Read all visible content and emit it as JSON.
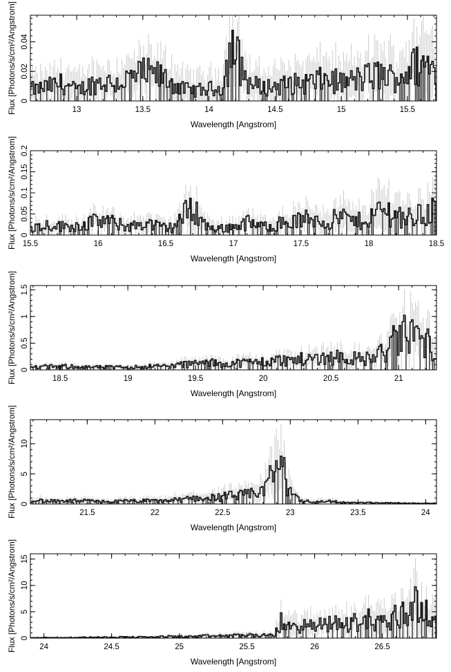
{
  "chart_data": [
    {
      "type": "line",
      "xlabel": "Wavelength [Angstrom]",
      "ylabel": "Flux [Photons/s/cm²/Angstrom]",
      "xlim": [
        12.65,
        15.72
      ],
      "ylim": [
        0,
        0.058
      ],
      "xticks": [
        13,
        13.5,
        14,
        14.5,
        15,
        15.5
      ],
      "xtick_labels": [
        "13",
        "13.5",
        "14",
        "14.5",
        "15",
        "15.5"
      ],
      "yticks": [
        0,
        0.02,
        0.04
      ],
      "ytick_labels": [
        "0",
        "0.02",
        "0.04"
      ],
      "series": [
        {
          "x": [
            12.7,
            12.8,
            12.9,
            13.0,
            13.1,
            13.2,
            13.3,
            13.4,
            13.5,
            13.6,
            13.7,
            13.8,
            13.9,
            14.0,
            14.1,
            14.17,
            14.3,
            14.4,
            14.5,
            14.6,
            14.7,
            14.8,
            14.9,
            15.0,
            15.1,
            15.2,
            15.3,
            15.4,
            15.5,
            15.6,
            15.7
          ],
          "y": [
            0.008,
            0.01,
            0.012,
            0.007,
            0.011,
            0.013,
            0.012,
            0.015,
            0.018,
            0.017,
            0.014,
            0.008,
            0.007,
            0.008,
            0.009,
            0.037,
            0.012,
            0.009,
            0.01,
            0.011,
            0.012,
            0.013,
            0.015,
            0.012,
            0.014,
            0.016,
            0.018,
            0.015,
            0.02,
            0.025,
            0.022
          ],
          "yerr": [
            0.01,
            0.01,
            0.012,
            0.01,
            0.011,
            0.012,
            0.012,
            0.013,
            0.014,
            0.013,
            0.013,
            0.011,
            0.011,
            0.011,
            0.012,
            0.018,
            0.012,
            0.011,
            0.012,
            0.012,
            0.013,
            0.014,
            0.015,
            0.013,
            0.014,
            0.016,
            0.017,
            0.016,
            0.018,
            0.022,
            0.02
          ]
        }
      ]
    },
    {
      "type": "line",
      "xlabel": "Wavelength [Angstrom]",
      "ylabel": "Flux [Photons/s/cm²/Angstrom]",
      "xlim": [
        15.5,
        18.5
      ],
      "ylim": [
        0,
        0.2
      ],
      "xticks": [
        15.5,
        16,
        16.5,
        17,
        17.5,
        18,
        18.5
      ],
      "xtick_labels": [
        "15.5",
        "16",
        "16.5",
        "17",
        "17.5",
        "18",
        "18.5"
      ],
      "yticks": [
        0,
        0.05,
        0.1,
        0.15,
        0.2
      ],
      "ytick_labels": [
        "0",
        "0.05",
        "0.1",
        "0.15",
        "0.2"
      ],
      "series": [
        {
          "x": [
            15.55,
            15.65,
            15.75,
            15.85,
            15.95,
            16.05,
            16.15,
            16.25,
            16.35,
            16.45,
            16.55,
            16.7,
            16.8,
            16.9,
            17.0,
            17.1,
            17.2,
            17.3,
            17.4,
            17.5,
            17.6,
            17.7,
            17.8,
            17.9,
            18.0,
            18.1,
            18.2,
            18.3,
            18.4,
            18.48
          ],
          "y": [
            0.02,
            0.025,
            0.02,
            0.022,
            0.03,
            0.035,
            0.025,
            0.02,
            0.03,
            0.02,
            0.018,
            0.07,
            0.02,
            0.015,
            0.02,
            0.03,
            0.02,
            0.025,
            0.03,
            0.035,
            0.04,
            0.03,
            0.045,
            0.03,
            0.04,
            0.06,
            0.05,
            0.04,
            0.05,
            0.06
          ],
          "yerr": [
            0.015,
            0.015,
            0.015,
            0.016,
            0.018,
            0.02,
            0.018,
            0.016,
            0.02,
            0.017,
            0.017,
            0.035,
            0.018,
            0.016,
            0.018,
            0.022,
            0.018,
            0.02,
            0.024,
            0.027,
            0.03,
            0.027,
            0.035,
            0.028,
            0.035,
            0.05,
            0.045,
            0.04,
            0.05,
            0.06
          ]
        }
      ]
    },
    {
      "type": "line",
      "xlabel": "Wavelength [Angstrom]",
      "ylabel": "Flux [Photons/s/cm²/Angstrom]",
      "xlim": [
        18.28,
        21.28
      ],
      "ylim": [
        0,
        1.58
      ],
      "xticks": [
        18.5,
        19,
        19.5,
        20,
        20.5,
        21
      ],
      "xtick_labels": [
        "18.5",
        "19",
        "19.5",
        "20",
        "20.5",
        "21"
      ],
      "yticks": [
        0,
        0.5,
        1,
        1.5
      ],
      "ytick_labels": [
        "0",
        "0.5",
        "1",
        "1.5"
      ],
      "series": [
        {
          "x": [
            18.3,
            18.4,
            18.5,
            18.6,
            18.7,
            18.8,
            18.9,
            19.0,
            19.1,
            19.2,
            19.3,
            19.4,
            19.5,
            19.6,
            19.7,
            19.8,
            19.9,
            20.0,
            20.1,
            20.2,
            20.3,
            20.4,
            20.5,
            20.6,
            20.7,
            20.8,
            20.9,
            21.0,
            21.1,
            21.2,
            21.27
          ],
          "y": [
            0.05,
            0.06,
            0.06,
            0.07,
            0.05,
            0.05,
            0.05,
            0.05,
            0.06,
            0.07,
            0.07,
            0.1,
            0.12,
            0.13,
            0.12,
            0.13,
            0.14,
            0.15,
            0.18,
            0.18,
            0.2,
            0.22,
            0.25,
            0.25,
            0.2,
            0.22,
            0.35,
            0.6,
            0.7,
            0.5,
            0.4
          ],
          "yerr": [
            0.04,
            0.04,
            0.04,
            0.05,
            0.04,
            0.04,
            0.04,
            0.04,
            0.05,
            0.05,
            0.05,
            0.07,
            0.08,
            0.08,
            0.08,
            0.09,
            0.1,
            0.1,
            0.12,
            0.12,
            0.13,
            0.14,
            0.15,
            0.16,
            0.14,
            0.16,
            0.25,
            0.4,
            0.45,
            0.35,
            0.3
          ]
        }
      ]
    },
    {
      "type": "line",
      "xlabel": "Wavelength [Angstrom]",
      "ylabel": "Flux [Photons/s/cm²/Angstrom]",
      "xlim": [
        21.08,
        24.08
      ],
      "ylim": [
        0,
        14
      ],
      "xticks": [
        21.5,
        22,
        22.5,
        23,
        23.5,
        24
      ],
      "xtick_labels": [
        "21.5",
        "22",
        "22.5",
        "23",
        "23.5",
        "24"
      ],
      "yticks": [
        0,
        5,
        10
      ],
      "ytick_labels": [
        "0",
        "5",
        "10"
      ],
      "series": [
        {
          "x": [
            21.1,
            21.2,
            21.3,
            21.4,
            21.5,
            21.6,
            21.7,
            21.8,
            21.9,
            22.0,
            22.1,
            22.2,
            22.3,
            22.4,
            22.5,
            22.6,
            22.7,
            22.75,
            22.8,
            22.85,
            22.9,
            22.95,
            23.0,
            23.05,
            23.1,
            23.2,
            23.3,
            23.4,
            23.5,
            23.6,
            23.7,
            23.8,
            23.9,
            24.0,
            24.07
          ],
          "y": [
            0.6,
            0.5,
            0.4,
            0.5,
            0.5,
            0.4,
            0.4,
            0.5,
            0.5,
            0.5,
            0.6,
            0.7,
            1.0,
            1.0,
            1.2,
            1.4,
            1.5,
            2.0,
            2.5,
            4.0,
            7.0,
            5.0,
            2.5,
            1.0,
            0.5,
            0.3,
            0.5,
            0.2,
            0.2,
            0.2,
            0.15,
            0.15,
            0.1,
            0.1,
            0.1
          ],
          "yerr": [
            0.5,
            0.5,
            0.4,
            0.5,
            0.5,
            0.4,
            0.4,
            0.5,
            0.5,
            0.5,
            0.6,
            0.7,
            0.9,
            0.9,
            1.0,
            1.1,
            1.2,
            1.5,
            2.0,
            3.0,
            5.0,
            4.0,
            2.0,
            1.0,
            0.5,
            0.4,
            0.5,
            0.3,
            0.3,
            0.3,
            0.2,
            0.2,
            0.2,
            0.2,
            0.2
          ]
        }
      ]
    },
    {
      "type": "line",
      "xlabel": "Wavelength [Angstrom]",
      "ylabel": "Flux [Photons/s/cm²/Angstrom]",
      "xlim": [
        23.9,
        26.9
      ],
      "ylim": [
        0,
        16
      ],
      "xticks": [
        24,
        24.5,
        25,
        25.5,
        26,
        26.5
      ],
      "xtick_labels": [
        "24",
        "24.5",
        "25",
        "25.5",
        "26",
        "26.5"
      ],
      "yticks": [
        0,
        5,
        10,
        15
      ],
      "ytick_labels": [
        "0",
        "5",
        "10",
        "15"
      ],
      "series": [
        {
          "x": [
            23.95,
            24.1,
            24.2,
            24.3,
            24.4,
            24.5,
            24.6,
            24.7,
            24.8,
            24.9,
            25.0,
            25.1,
            25.2,
            25.3,
            25.4,
            25.5,
            25.6,
            25.7,
            25.75,
            25.8,
            25.9,
            26.0,
            26.1,
            26.2,
            26.3,
            26.4,
            26.5,
            26.6,
            26.7,
            26.75,
            26.8,
            26.88
          ],
          "y": [
            0.1,
            0.1,
            0.1,
            0.15,
            0.15,
            0.2,
            0.2,
            0.2,
            0.2,
            0.3,
            0.3,
            0.3,
            0.4,
            0.4,
            0.5,
            0.6,
            0.5,
            0.5,
            3.0,
            2.0,
            2.5,
            2.0,
            3.0,
            2.5,
            3.0,
            3.5,
            3.0,
            4.0,
            5.0,
            8.0,
            5.0,
            3.0
          ],
          "yerr": [
            0.2,
            0.2,
            0.2,
            0.2,
            0.2,
            0.25,
            0.25,
            0.25,
            0.25,
            0.3,
            0.3,
            0.3,
            0.4,
            0.4,
            0.5,
            0.6,
            0.5,
            0.5,
            2.5,
            2.0,
            2.2,
            2.0,
            2.5,
            2.2,
            2.5,
            3.0,
            2.8,
            3.5,
            4.0,
            5.5,
            4.5,
            3.0
          ]
        }
      ]
    }
  ]
}
